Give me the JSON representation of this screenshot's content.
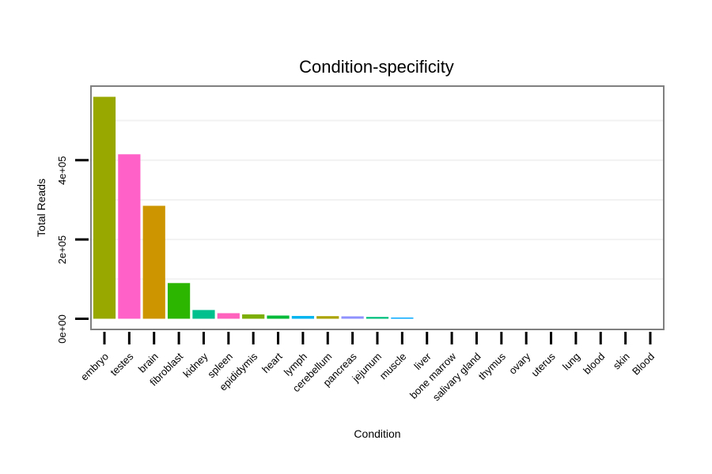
{
  "chart_data": {
    "type": "bar",
    "title": "Condition-specificity",
    "xlabel": "Condition",
    "ylabel": "Total Reads",
    "categories": [
      "embryo",
      "testes",
      "brain",
      "fibroblast",
      "kidney",
      "spleen",
      "epididymis",
      "heart",
      "lymph",
      "cerebellum",
      "pancreas",
      "jejunum",
      "muscle",
      "liver",
      "bone marrow",
      "salivary gland",
      "thymus",
      "ovary",
      "uterus",
      "lung",
      "blood",
      "skin",
      "Blood"
    ],
    "values": [
      560000,
      415000,
      285000,
      90000,
      22000,
      14000,
      11000,
      8000,
      7000,
      6500,
      6000,
      4500,
      3000,
      0,
      0,
      0,
      0,
      0,
      0,
      0,
      0,
      0,
      0
    ],
    "colors": [
      "#99A800",
      "#FF61C9",
      "#CD9600",
      "#2DB600",
      "#00C08D",
      "#FF62BC",
      "#7CAE00",
      "#00BA38",
      "#00B4EF",
      "#ABA300",
      "#8F91FF",
      "#00BF7D",
      "#00A9FF",
      "#00BFC4",
      "#E68613",
      "#C77CFF",
      "#00C19A",
      "#F8766D",
      "#E76BF3",
      "#00B0F6",
      "#619CFF",
      "#FF6C91",
      "#0CB702"
    ],
    "yticks": [
      0,
      200000,
      400000
    ],
    "ytick_labels": [
      "0e+00",
      "2e+05",
      "4e+05"
    ],
    "ylim": [
      -25000,
      585000
    ],
    "grid": true,
    "legend": "none"
  }
}
